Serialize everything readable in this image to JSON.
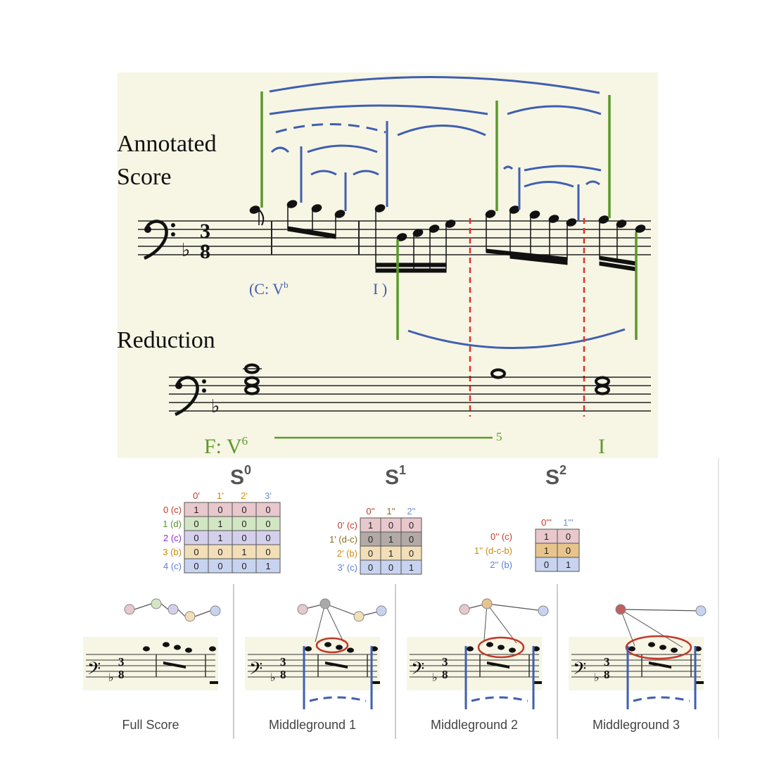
{
  "top_panel": {
    "labels": {
      "annotated": "Annotated",
      "score": "Score",
      "reduction": "Reduction"
    },
    "roman_c": "(C: V",
    "roman_c_sup": "b",
    "roman_i": "I )",
    "roman_f": "F:  V",
    "roman_f_sup": "6",
    "roman_five": "5",
    "roman_final": "I"
  },
  "matrices": {
    "s0": {
      "title": "S",
      "sup": "0",
      "cols": [
        "0'",
        "1'",
        "2'",
        "3'"
      ],
      "col_colors": [
        "#c0392b",
        "#b8860b",
        "#e08e0b",
        "#6b8ed6"
      ],
      "rows": [
        {
          "label": "0 (c)",
          "color": "#c0392b",
          "bg": "#e8c8cc",
          "values": [
            1,
            0,
            0,
            0
          ]
        },
        {
          "label": "1 (d)",
          "color": "#5a8f29",
          "bg": "#d3e6c4",
          "values": [
            0,
            1,
            0,
            0
          ]
        },
        {
          "label": "2 (c)",
          "color": "#8e2fd0",
          "bg": "#d4d0ec",
          "values": [
            0,
            1,
            0,
            0
          ]
        },
        {
          "label": "3 (b)",
          "color": "#c98a0a",
          "bg": "#f2dfb8",
          "values": [
            0,
            0,
            1,
            0
          ]
        },
        {
          "label": "4 (c)",
          "color": "#5a7fd6",
          "bg": "#c8d3f0",
          "values": [
            0,
            0,
            0,
            1
          ]
        }
      ]
    },
    "s1": {
      "title": "S",
      "sup": "1",
      "cols": [
        "0''",
        "1''",
        "2''"
      ],
      "col_colors": [
        "#c0392b",
        "#8a6d1a",
        "#6b8ed6"
      ],
      "rows": [
        {
          "label": "0' (c)",
          "color": "#c0392b",
          "bg": "#e8c8cc",
          "values": [
            1,
            0,
            0
          ]
        },
        {
          "label": "1' (d-c)",
          "color": "#8a6d1a",
          "bg": "#b3aaa6",
          "values": [
            0,
            1,
            0
          ]
        },
        {
          "label": "2' (b)",
          "color": "#c98a0a",
          "bg": "#f2dfb8",
          "values": [
            0,
            1,
            0
          ]
        },
        {
          "label": "3' (c)",
          "color": "#5a7fd6",
          "bg": "#c8d3f0",
          "values": [
            0,
            0,
            1
          ]
        }
      ]
    },
    "s2": {
      "title": "S",
      "sup": "2",
      "cols": [
        "0'''",
        "1'''"
      ],
      "col_colors": [
        "#c0392b",
        "#6b8ed6"
      ],
      "rows": [
        {
          "label": "0'' (c)",
          "color": "#c0392b",
          "bg": "#e8c8cc",
          "values": [
            1,
            0
          ]
        },
        {
          "label": "1'' (d-c-b)",
          "color": "#c98a0a",
          "bg": "#e6c48c",
          "values": [
            1,
            0
          ]
        },
        {
          "label": "2'' (b)",
          "color": "#5a7fd6",
          "bg": "#c8d3f0",
          "values": [
            0,
            1
          ]
        }
      ]
    }
  },
  "bottom_panels": [
    {
      "caption": "Full Score"
    },
    {
      "caption": "Middleground 1"
    },
    {
      "caption": "Middleground 2"
    },
    {
      "caption": "Middleground 3"
    }
  ],
  "colors": {
    "score_bg": "#f7f5e4",
    "blue": "#3f5fb0",
    "green": "#5a9a2a",
    "red_dash": "#d9342b"
  }
}
